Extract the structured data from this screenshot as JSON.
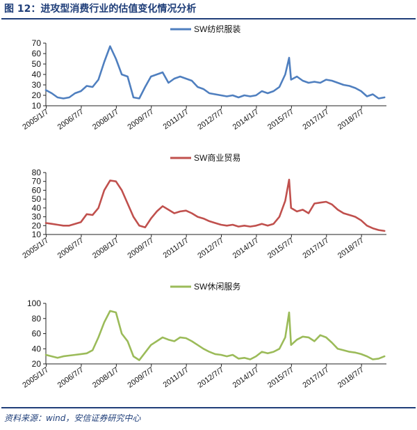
{
  "figure": {
    "title": "图 12：进攻型消费行业的估值变化情况分析",
    "source": "资料来源：wind，安信证券研究中心"
  },
  "chart_data": [
    {
      "type": "line",
      "series": [
        {
          "name": "SW纺织服装",
          "color": "#4f7fbf",
          "x": [
            "2005/1",
            "2005/4",
            "2005/7",
            "2005/10",
            "2006/1",
            "2006/4",
            "2006/7",
            "2006/10",
            "2007/1",
            "2007/4",
            "2007/7",
            "2007/10",
            "2008/1",
            "2008/4",
            "2008/7",
            "2008/10",
            "2009/1",
            "2009/4",
            "2009/7",
            "2009/10",
            "2010/1",
            "2010/4",
            "2010/7",
            "2010/10",
            "2011/1",
            "2011/4",
            "2011/7",
            "2011/10",
            "2012/1",
            "2012/4",
            "2012/7",
            "2012/10",
            "2013/1",
            "2013/4",
            "2013/7",
            "2013/10",
            "2014/1",
            "2014/4",
            "2014/7",
            "2014/10",
            "2015/1",
            "2015/4",
            "2015/6",
            "2015/7",
            "2015/10",
            "2016/1",
            "2016/4",
            "2016/7",
            "2016/10",
            "2017/1",
            "2017/4",
            "2017/7",
            "2017/10",
            "2018/1",
            "2018/4",
            "2018/7",
            "2018/10",
            "2019/1",
            "2019/4",
            "2019/7"
          ],
          "values": [
            25,
            22,
            18,
            17,
            18,
            22,
            24,
            29,
            28,
            35,
            52,
            67,
            55,
            40,
            38,
            18,
            17,
            28,
            38,
            40,
            42,
            32,
            36,
            38,
            36,
            34,
            28,
            26,
            22,
            21,
            20,
            19,
            20,
            18,
            20,
            19,
            20,
            24,
            22,
            24,
            28,
            40,
            56,
            35,
            38,
            34,
            32,
            33,
            32,
            35,
            34,
            32,
            30,
            29,
            27,
            24,
            19,
            21,
            17,
            18
          ]
        }
      ],
      "yticks": [
        10,
        20,
        30,
        40,
        50,
        60,
        70
      ],
      "ylim": [
        10,
        70
      ],
      "xticks": [
        "2005/1/7",
        "2006/7/7",
        "2008/1/7",
        "2009/7/7",
        "2011/1/7",
        "2012/7/7",
        "2014/1/7",
        "2015/7/7",
        "2017/1/7",
        "2018/7/7"
      ],
      "legend_position": "top-center",
      "grid": false
    },
    {
      "type": "line",
      "series": [
        {
          "name": "SW商业贸易",
          "color": "#c0504d",
          "x": [
            "2005/1",
            "2005/4",
            "2005/7",
            "2005/10",
            "2006/1",
            "2006/4",
            "2006/7",
            "2006/10",
            "2007/1",
            "2007/4",
            "2007/7",
            "2007/10",
            "2008/1",
            "2008/4",
            "2008/7",
            "2008/10",
            "2009/1",
            "2009/4",
            "2009/7",
            "2009/10",
            "2010/1",
            "2010/4",
            "2010/7",
            "2010/10",
            "2011/1",
            "2011/4",
            "2011/7",
            "2011/10",
            "2012/1",
            "2012/4",
            "2012/7",
            "2012/10",
            "2013/1",
            "2013/4",
            "2013/7",
            "2013/10",
            "2014/1",
            "2014/4",
            "2014/7",
            "2014/10",
            "2015/1",
            "2015/4",
            "2015/6",
            "2015/7",
            "2015/10",
            "2016/1",
            "2016/4",
            "2016/7",
            "2016/10",
            "2017/1",
            "2017/4",
            "2017/7",
            "2017/10",
            "2018/1",
            "2018/4",
            "2018/7",
            "2018/10",
            "2019/1",
            "2019/4",
            "2019/7"
          ],
          "values": [
            23,
            22,
            21,
            20,
            20,
            22,
            24,
            33,
            32,
            40,
            60,
            71,
            70,
            60,
            45,
            30,
            20,
            18,
            28,
            36,
            42,
            38,
            34,
            36,
            37,
            34,
            30,
            28,
            25,
            23,
            21,
            20,
            21,
            19,
            20,
            19,
            20,
            22,
            20,
            22,
            30,
            48,
            72,
            40,
            36,
            38,
            34,
            45,
            46,
            47,
            44,
            38,
            34,
            32,
            30,
            26,
            20,
            17,
            15,
            14
          ]
        }
      ],
      "yticks": [
        10,
        20,
        30,
        40,
        50,
        60,
        70,
        80
      ],
      "ylim": [
        10,
        80
      ],
      "xticks": [
        "2005/1/7",
        "2006/7/7",
        "2008/1/7",
        "2009/7/7",
        "2011/1/7",
        "2012/7/7",
        "2014/1/7",
        "2015/7/7",
        "2017/1/7",
        "2018/7/7"
      ],
      "legend_position": "top-center",
      "grid": false
    },
    {
      "type": "line",
      "series": [
        {
          "name": "SW休闲服务",
          "color": "#9bbb59",
          "x": [
            "2005/1",
            "2005/4",
            "2005/7",
            "2005/10",
            "2006/1",
            "2006/4",
            "2006/7",
            "2006/10",
            "2007/1",
            "2007/4",
            "2007/7",
            "2007/10",
            "2008/1",
            "2008/4",
            "2008/7",
            "2008/10",
            "2009/1",
            "2009/4",
            "2009/7",
            "2009/10",
            "2010/1",
            "2010/4",
            "2010/7",
            "2010/10",
            "2011/1",
            "2011/4",
            "2011/7",
            "2011/10",
            "2012/1",
            "2012/4",
            "2012/7",
            "2012/10",
            "2013/1",
            "2013/4",
            "2013/7",
            "2013/10",
            "2014/1",
            "2014/4",
            "2014/7",
            "2014/10",
            "2015/1",
            "2015/4",
            "2015/6",
            "2015/7",
            "2015/10",
            "2016/1",
            "2016/4",
            "2016/7",
            "2016/10",
            "2017/1",
            "2017/4",
            "2017/7",
            "2017/10",
            "2018/1",
            "2018/4",
            "2018/7",
            "2018/10",
            "2019/1",
            "2019/4",
            "2019/7"
          ],
          "values": [
            32,
            30,
            28,
            30,
            31,
            32,
            33,
            34,
            38,
            55,
            75,
            90,
            88,
            60,
            50,
            30,
            25,
            35,
            45,
            50,
            55,
            52,
            50,
            55,
            54,
            50,
            45,
            40,
            36,
            33,
            32,
            30,
            32,
            27,
            28,
            26,
            30,
            36,
            34,
            36,
            40,
            55,
            88,
            45,
            52,
            56,
            55,
            50,
            58,
            55,
            48,
            40,
            38,
            36,
            35,
            33,
            30,
            26,
            27,
            30
          ]
        }
      ],
      "yticks": [
        20,
        40,
        60,
        80,
        100
      ],
      "ylim": [
        20,
        100
      ],
      "xticks": [
        "2005/1/7",
        "2006/7/7",
        "2008/1/7",
        "2009/7/7",
        "2011/1/7",
        "2012/7/7",
        "2014/1/7",
        "2015/7/7",
        "2017/1/7",
        "2018/7/7"
      ],
      "legend_position": "top-center",
      "grid": false
    }
  ]
}
